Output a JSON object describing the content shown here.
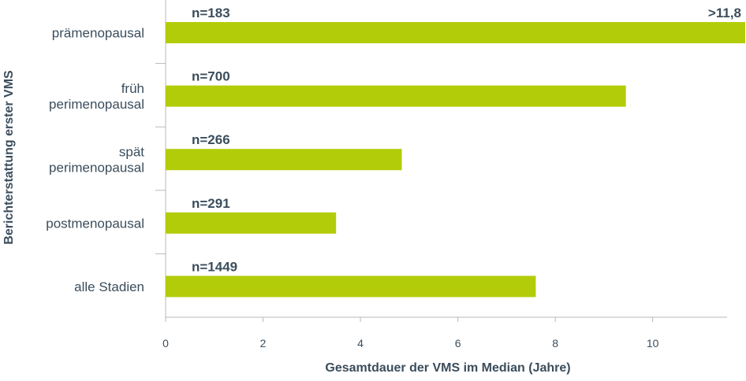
{
  "chart_data": {
    "type": "bar",
    "orientation": "horizontal",
    "categories": [
      [
        "prämenopausal"
      ],
      [
        "früh",
        "perimenopausal"
      ],
      [
        "spät",
        "perimenopausal"
      ],
      [
        "postmenopausal"
      ],
      [
        "alle Stadien"
      ]
    ],
    "values": [
      11.9,
      9.45,
      4.85,
      3.5,
      7.6
    ],
    "n_labels": [
      "n=183",
      "n=700",
      "n=266",
      "n=291",
      "n=1449"
    ],
    "value_labels": [
      ">11,8",
      "",
      "",
      "",
      ""
    ],
    "xlabel": "Gesamtdauer der VMS im Median (Jahre)",
    "ylabel": "Berichterstattung erster VMS",
    "xlim": [
      0,
      11.9
    ],
    "xticks": [
      0,
      2,
      4,
      6,
      8,
      10
    ],
    "bar_color": "#b3cc0a",
    "text_color": "#3b4d5c",
    "axis_color": "#b9b9b9",
    "grid": false,
    "legend": "none"
  }
}
